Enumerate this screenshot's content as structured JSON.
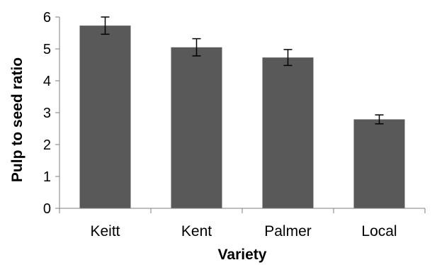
{
  "chart_data": {
    "type": "bar",
    "categories": [
      "Keitt",
      "Kent",
      "Palmer",
      "Local"
    ],
    "values": [
      5.73,
      5.05,
      4.73,
      2.79
    ],
    "errors": [
      0.27,
      0.27,
      0.25,
      0.14
    ],
    "title": "",
    "xlabel": "Variety",
    "ylabel": "Pulp to seed ratio",
    "ylim": [
      0,
      6
    ],
    "yticks": [
      "0",
      "1",
      "2",
      "3",
      "4",
      "5",
      "6"
    ],
    "grid": false,
    "legend": "none",
    "colors": {
      "bar": "#595959",
      "axis": "#7f7f7f",
      "errorbar": "#000000"
    }
  }
}
